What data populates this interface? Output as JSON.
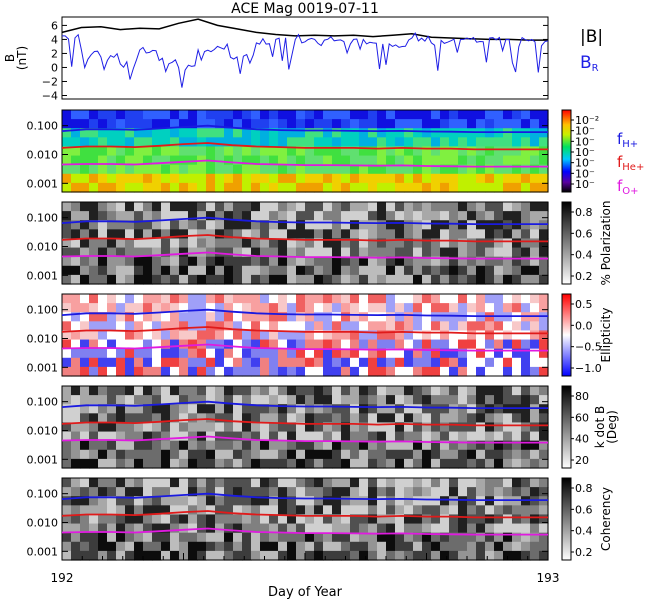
{
  "title": "ACE Mag 0019-07-11",
  "colors": {
    "total_field": "#000000",
    "radial_field": "#1f1fe6",
    "f_h": "#1a1ae0",
    "f_he": "#e01a1a",
    "f_o": "#e01ae0"
  },
  "x_axis": {
    "label": "Day of Year",
    "range": [
      192,
      193
    ],
    "tick_labels": [
      "192",
      "193"
    ]
  },
  "legend": {
    "field_total": "|B|",
    "field_radial": "B",
    "field_radial_sub": "R",
    "freq_h": "f",
    "freq_h_sub": "H+",
    "freq_he": "f",
    "freq_he_sub": "He+",
    "freq_o": "f",
    "freq_o_sub": "O+"
  },
  "chart_data": [
    {
      "type": "line",
      "panel": "magnetic-field",
      "ylabel_top": "B",
      "ylabel_unit": "(nT)",
      "y_tick_labels": [
        "6",
        "4",
        "2",
        "0",
        "−2",
        "−4"
      ],
      "ylim": [
        -4.5,
        7.2
      ],
      "x": [
        192.0,
        192.04,
        192.08,
        192.12,
        192.16,
        192.2,
        192.24,
        192.28,
        192.32,
        192.36,
        192.4,
        192.44,
        192.48,
        192.52,
        192.56,
        192.6,
        192.64,
        192.68,
        192.72,
        192.76,
        192.8,
        192.84,
        192.88,
        192.92,
        192.96,
        193.0
      ],
      "series": [
        {
          "name": "|B|",
          "values": [
            5.0,
            5.7,
            5.8,
            5.4,
            5.6,
            5.5,
            6.3,
            6.9,
            6.0,
            5.5,
            5.0,
            4.7,
            4.5,
            4.6,
            4.5,
            4.6,
            4.4,
            4.6,
            4.8,
            4.3,
            4.2,
            4.1,
            4.0,
            4.0,
            3.9,
            3.9
          ]
        },
        {
          "name": "B_R",
          "values": [
            4.5,
            2.5,
            1.5,
            0.5,
            2.5,
            1.0,
            0.0,
            2.5,
            3.0,
            1.5,
            3.5,
            4.0,
            4.0,
            4.0,
            3.8,
            4.0,
            3.5,
            3.0,
            4.2,
            3.5,
            3.8,
            4.0,
            4.2,
            4.0,
            3.8,
            3.8
          ]
        }
      ]
    },
    {
      "type": "heatmap",
      "panel": "power-spectrum",
      "y_tick_labels": [
        "0.100",
        "0.010",
        "0.001"
      ],
      "y_scale": "log",
      "ylim": [
        0.0005,
        0.35
      ],
      "colorbar_label": "",
      "colorbar_tick_labels": [
        "10⁻²",
        "10⁻",
        "10⁻",
        "10⁻",
        "10⁻",
        "10⁻",
        "10⁻"
      ],
      "colorbar_scale": "rainbow"
    },
    {
      "type": "heatmap",
      "panel": "polarization",
      "y_tick_labels": [
        "0.100",
        "0.010",
        "0.001"
      ],
      "y_scale": "log",
      "ylim": [
        0.0005,
        0.35
      ],
      "colorbar_label": "% Polarization",
      "colorbar_tick_labels": [
        "0.8",
        "0.6",
        "0.4",
        "0.2"
      ],
      "colorbar_scale": "grayscale"
    },
    {
      "type": "heatmap",
      "panel": "ellipticity",
      "y_tick_labels": [
        "0.100",
        "0.010",
        "0.001"
      ],
      "y_scale": "log",
      "ylim": [
        0.0005,
        0.35
      ],
      "colorbar_label": "Ellipticity",
      "colorbar_tick_labels": [
        "0.5",
        "0.0",
        "−0.5",
        "−1.0"
      ],
      "colorbar_scale": "blue-white-red"
    },
    {
      "type": "heatmap",
      "panel": "k-dot-b",
      "y_tick_labels": [
        "0.100",
        "0.010",
        "0.001"
      ],
      "y_scale": "log",
      "ylim": [
        0.0005,
        0.35
      ],
      "colorbar_label_line1": "k dot B",
      "colorbar_label_line2": "(Deg)",
      "colorbar_tick_labels": [
        "80",
        "60",
        "40",
        "20"
      ],
      "colorbar_scale": "grayscale"
    },
    {
      "type": "heatmap",
      "panel": "coherency",
      "y_tick_labels": [
        "0.100",
        "0.010",
        "0.001"
      ],
      "y_scale": "log",
      "ylim": [
        0.0005,
        0.35
      ],
      "colorbar_label": "Coherency",
      "colorbar_tick_labels": [
        "0.8",
        "0.6",
        "0.4",
        "0.2"
      ],
      "colorbar_scale": "grayscale"
    }
  ],
  "gyrofrequency_lines": {
    "x": [
      192.0,
      192.05,
      192.1,
      192.15,
      192.2,
      192.25,
      192.3,
      192.35,
      192.4,
      192.45,
      192.5,
      192.55,
      192.6,
      192.65,
      192.7,
      192.75,
      192.8,
      192.85,
      192.9,
      192.95,
      193.0
    ],
    "f_h": [
      0.065,
      0.075,
      0.075,
      0.072,
      0.08,
      0.09,
      0.1,
      0.085,
      0.075,
      0.07,
      0.068,
      0.068,
      0.066,
      0.065,
      0.066,
      0.063,
      0.062,
      0.06,
      0.06,
      0.06,
      0.06
    ],
    "f_he": [
      0.017,
      0.019,
      0.019,
      0.018,
      0.02,
      0.023,
      0.025,
      0.021,
      0.019,
      0.018,
      0.017,
      0.017,
      0.017,
      0.016,
      0.017,
      0.016,
      0.016,
      0.015,
      0.015,
      0.015,
      0.015
    ],
    "f_o": [
      0.0045,
      0.0047,
      0.0047,
      0.0045,
      0.005,
      0.0056,
      0.0062,
      0.0053,
      0.0047,
      0.0045,
      0.0043,
      0.0043,
      0.0042,
      0.0041,
      0.0042,
      0.004,
      0.0039,
      0.0038,
      0.0038,
      0.0038,
      0.0038
    ]
  }
}
